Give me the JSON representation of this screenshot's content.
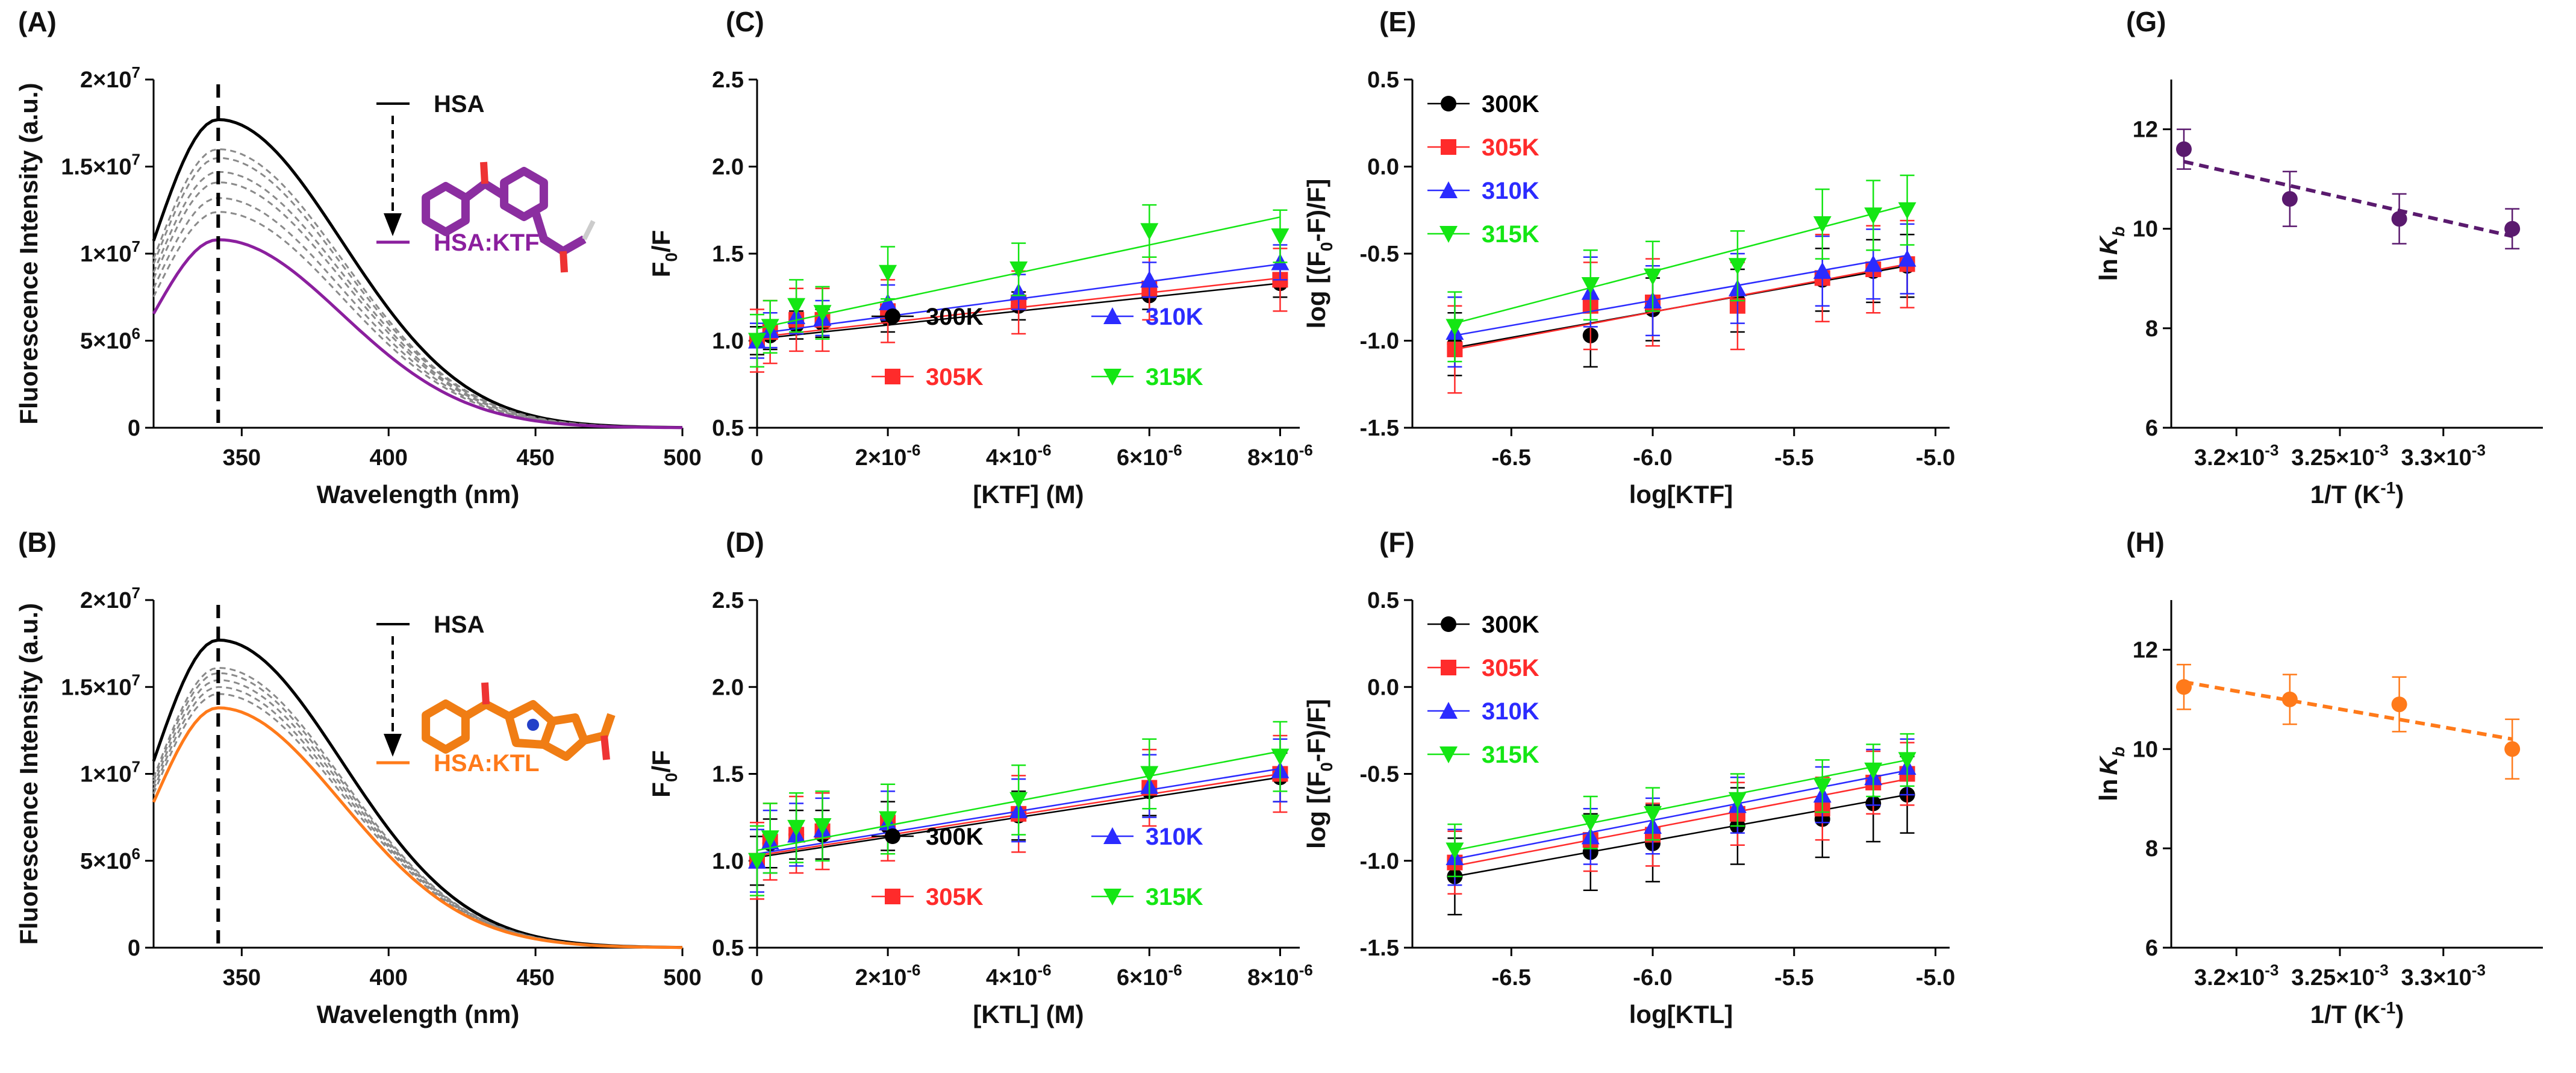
{
  "colors": {
    "black": "#000000",
    "red": "#ff2b2b",
    "blue": "#2b2bff",
    "green": "#14e614",
    "purple": "#6a1b7a",
    "purple_dark": "#4a1060",
    "orange": "#ff7a1a",
    "gray": "#8a8a8a"
  },
  "chart_data": [
    {
      "id": "A",
      "panel_label": "(A)",
      "type": "line",
      "xlabel": "Wavelength (nm)",
      "ylabel": "Fluorescence Intensity (a.u.)",
      "xlim": [
        320,
        500
      ],
      "ylim": [
        0,
        20000000
      ],
      "xticks": [
        350,
        400,
        450,
        500
      ],
      "yticks": [
        {
          "v": 0,
          "m": "0",
          "e": ""
        },
        {
          "v": 5000000,
          "m": "5×10",
          "e": "6"
        },
        {
          "v": 10000000,
          "m": "1×10",
          "e": "7"
        },
        {
          "v": 15000000,
          "m": "1.5×10",
          "e": "7"
        },
        {
          "v": 20000000,
          "m": "2×10",
          "e": "7"
        }
      ],
      "peak_nm": 342,
      "series": [
        {
          "name": "HSA",
          "peak": 17700000,
          "color": "#000000",
          "style": "solid"
        },
        {
          "name": "q1",
          "peak": 16000000,
          "color": "#8a8a8a",
          "style": "dashed"
        },
        {
          "name": "q2",
          "peak": 15500000,
          "color": "#8a8a8a",
          "style": "dashed"
        },
        {
          "name": "q3",
          "peak": 14700000,
          "color": "#8a8a8a",
          "style": "dashed"
        },
        {
          "name": "q4",
          "peak": 14100000,
          "color": "#8a8a8a",
          "style": "dashed"
        },
        {
          "name": "q5",
          "peak": 13200000,
          "color": "#8a8a8a",
          "style": "dashed"
        },
        {
          "name": "q6",
          "peak": 12400000,
          "color": "#8a8a8a",
          "style": "dashed"
        },
        {
          "name": "HSA:KTF",
          "peak": 10800000,
          "color": "#8b1f9e",
          "style": "solid"
        }
      ],
      "legend_top": "HSA",
      "legend_bottom": "HSA:KTF",
      "legend_bottom_color": "#8b1f9e",
      "molecule": "purple"
    },
    {
      "id": "B",
      "panel_label": "(B)",
      "type": "line",
      "xlabel": "Wavelength (nm)",
      "ylabel": "Fluorescence Intensity (a.u.)",
      "xlim": [
        320,
        500
      ],
      "ylim": [
        0,
        20000000
      ],
      "xticks": [
        350,
        400,
        450,
        500
      ],
      "yticks": [
        {
          "v": 0,
          "m": "0",
          "e": ""
        },
        {
          "v": 5000000,
          "m": "5×10",
          "e": "6"
        },
        {
          "v": 10000000,
          "m": "1×10",
          "e": "7"
        },
        {
          "v": 15000000,
          "m": "1.5×10",
          "e": "7"
        },
        {
          "v": 20000000,
          "m": "2×10",
          "e": "7"
        }
      ],
      "peak_nm": 342,
      "series": [
        {
          "name": "HSA",
          "peak": 17700000,
          "color": "#000000",
          "style": "solid"
        },
        {
          "name": "q1",
          "peak": 16100000,
          "color": "#8a8a8a",
          "style": "dashed"
        },
        {
          "name": "q2",
          "peak": 15800000,
          "color": "#8a8a8a",
          "style": "dashed"
        },
        {
          "name": "q3",
          "peak": 15400000,
          "color": "#8a8a8a",
          "style": "dashed"
        },
        {
          "name": "q4",
          "peak": 15000000,
          "color": "#8a8a8a",
          "style": "dashed"
        },
        {
          "name": "q5",
          "peak": 14600000,
          "color": "#8a8a8a",
          "style": "dashed"
        },
        {
          "name": "HSA:KTL",
          "peak": 13800000,
          "color": "#ff7a1a",
          "style": "solid"
        }
      ],
      "legend_top": "HSA",
      "legend_bottom": "HSA:KTL",
      "legend_bottom_color": "#ff7a1a",
      "molecule": "orange"
    },
    {
      "id": "C",
      "panel_label": "(C)",
      "type": "scatter",
      "xlabel": "[KTF] (M)",
      "ylabel_main": "F",
      "ylabel_sub": "0",
      "ylabel_tail": "/F",
      "xlim": [
        0,
        8.3e-06
      ],
      "ylim": [
        0.5,
        2.5
      ],
      "xticks": [
        {
          "v": 0,
          "m": "0",
          "e": ""
        },
        {
          "v": 2e-06,
          "m": "2×10",
          "e": "-6"
        },
        {
          "v": 4e-06,
          "m": "4×10",
          "e": "-6"
        },
        {
          "v": 6e-06,
          "m": "6×10",
          "e": "-6"
        },
        {
          "v": 8e-06,
          "m": "8×10",
          "e": "-6"
        }
      ],
      "yticks": [
        0.5,
        1.0,
        1.5,
        2.0,
        2.5
      ],
      "x": [
        0,
        2e-07,
        6e-07,
        1e-06,
        2e-06,
        4e-06,
        6e-06,
        8e-06
      ],
      "series": [
        {
          "name": "300K",
          "marker": "circle",
          "color": "#000000",
          "fit": [
            1.01,
            1.33
          ],
          "values": [
            1.0,
            1.03,
            1.09,
            1.1,
            1.13,
            1.2,
            1.26,
            1.33
          ],
          "err": 0.08
        },
        {
          "name": "305K",
          "marker": "square",
          "color": "#ff2b2b",
          "fit": [
            1.02,
            1.36
          ],
          "values": [
            1.0,
            1.05,
            1.12,
            1.12,
            1.17,
            1.22,
            1.3,
            1.35
          ],
          "err": 0.18
        },
        {
          "name": "310K",
          "marker": "triangle-up",
          "color": "#2b2bff",
          "fit": [
            1.04,
            1.44
          ],
          "values": [
            1.0,
            1.06,
            1.14,
            1.13,
            1.22,
            1.28,
            1.35,
            1.45
          ],
          "err": 0.1
        },
        {
          "name": "315K",
          "marker": "triangle-down",
          "color": "#14e614",
          "fit": [
            1.07,
            1.71
          ],
          "values": [
            1.0,
            1.08,
            1.2,
            1.16,
            1.39,
            1.41,
            1.63,
            1.6
          ],
          "err": 0.15
        }
      ],
      "legend_layout": "grid2x2-bottom"
    },
    {
      "id": "D",
      "panel_label": "(D)",
      "type": "scatter",
      "xlabel": "[KTL] (M)",
      "ylabel_main": "F",
      "ylabel_sub": "0",
      "ylabel_tail": "/F",
      "xlim": [
        0,
        8.3e-06
      ],
      "ylim": [
        0.5,
        2.5
      ],
      "xticks": [
        {
          "v": 0,
          "m": "0",
          "e": ""
        },
        {
          "v": 2e-06,
          "m": "2×10",
          "e": "-6"
        },
        {
          "v": 4e-06,
          "m": "4×10",
          "e": "-6"
        },
        {
          "v": 6e-06,
          "m": "6×10",
          "e": "-6"
        },
        {
          "v": 8e-06,
          "m": "8×10",
          "e": "-6"
        }
      ],
      "yticks": [
        0.5,
        1.0,
        1.5,
        2.0,
        2.5
      ],
      "x": [
        0,
        2e-07,
        6e-07,
        1e-06,
        2e-06,
        4e-06,
        6e-06,
        8e-06
      ],
      "series": [
        {
          "name": "300K",
          "marker": "circle",
          "color": "#000000",
          "fit": [
            1.02,
            1.48
          ],
          "values": [
            1.0,
            1.1,
            1.15,
            1.15,
            1.2,
            1.26,
            1.4,
            1.48
          ],
          "err": 0.14
        },
        {
          "name": "305K",
          "marker": "square",
          "color": "#ff2b2b",
          "fit": [
            1.03,
            1.5
          ],
          "values": [
            1.0,
            1.11,
            1.15,
            1.17,
            1.22,
            1.27,
            1.42,
            1.5
          ],
          "err": 0.22
        },
        {
          "name": "310K",
          "marker": "triangle-up",
          "color": "#2b2bff",
          "fit": [
            1.04,
            1.53
          ],
          "values": [
            1.0,
            1.11,
            1.15,
            1.18,
            1.22,
            1.29,
            1.43,
            1.52
          ],
          "err": 0.18
        },
        {
          "name": "315K",
          "marker": "triangle-down",
          "color": "#14e614",
          "fit": [
            1.06,
            1.63
          ],
          "values": [
            1.0,
            1.13,
            1.19,
            1.2,
            1.24,
            1.35,
            1.5,
            1.6
          ],
          "err": 0.2
        }
      ],
      "legend_layout": "grid2x2-bottom"
    },
    {
      "id": "E",
      "panel_label": "(E)",
      "type": "scatter",
      "xlabel": "log[KTF]",
      "ylabel_main": "log [(F",
      "ylabel_sub": "0",
      "ylabel_tail": "-F)/F]",
      "xlim": [
        -6.85,
        -4.95
      ],
      "ylim": [
        -1.5,
        0.5
      ],
      "xticks": [
        {
          "v": -6.5,
          "m": "-6.5",
          "e": ""
        },
        {
          "v": -6.0,
          "m": "-6.0",
          "e": ""
        },
        {
          "v": -5.5,
          "m": "-5.5",
          "e": ""
        },
        {
          "v": -5.0,
          "m": "-5.0",
          "e": ""
        }
      ],
      "yticks": [
        -1.5,
        -1.0,
        -0.5,
        0.0,
        0.5
      ],
      "x": [
        -6.7,
        -6.22,
        -6.0,
        -5.7,
        -5.4,
        -5.22,
        -5.1
      ],
      "series": [
        {
          "name": "300K",
          "marker": "circle",
          "color": "#000000",
          "fit": [
            -1.04,
            -0.57
          ],
          "values": [
            -1.02,
            -0.97,
            -0.82,
            -0.77,
            -0.65,
            -0.6,
            -0.57
          ],
          "err": 0.18
        },
        {
          "name": "305K",
          "marker": "square",
          "color": "#ff2b2b",
          "fit": [
            -1.05,
            -0.56
          ],
          "values": [
            -1.05,
            -0.8,
            -0.78,
            -0.8,
            -0.64,
            -0.59,
            -0.56
          ],
          "err": 0.25
        },
        {
          "name": "310K",
          "marker": "triangle-up",
          "color": "#2b2bff",
          "fit": [
            -0.97,
            -0.51
          ],
          "values": [
            -0.95,
            -0.72,
            -0.77,
            -0.7,
            -0.6,
            -0.56,
            -0.53
          ],
          "err": 0.2
        },
        {
          "name": "315K",
          "marker": "triangle-down",
          "color": "#14e614",
          "fit": [
            -0.9,
            -0.22
          ],
          "values": [
            -0.92,
            -0.68,
            -0.63,
            -0.57,
            -0.33,
            -0.28,
            -0.25
          ],
          "err": 0.2
        }
      ],
      "legend_layout": "column-top-left"
    },
    {
      "id": "F",
      "panel_label": "(F)",
      "type": "scatter",
      "xlabel": "log[KTL]",
      "ylabel_main": "log [(F",
      "ylabel_sub": "0",
      "ylabel_tail": "-F)/F]",
      "xlim": [
        -6.85,
        -4.95
      ],
      "ylim": [
        -1.5,
        0.5
      ],
      "xticks": [
        {
          "v": -6.5,
          "m": "-6.5",
          "e": ""
        },
        {
          "v": -6.0,
          "m": "-6.0",
          "e": ""
        },
        {
          "v": -5.5,
          "m": "-5.5",
          "e": ""
        },
        {
          "v": -5.0,
          "m": "-5.0",
          "e": ""
        }
      ],
      "yticks": [
        -1.5,
        -1.0,
        -0.5,
        0.0,
        0.5
      ],
      "x": [
        -6.7,
        -6.22,
        -6.0,
        -5.7,
        -5.4,
        -5.22,
        -5.1
      ],
      "series": [
        {
          "name": "300K",
          "marker": "circle",
          "color": "#000000",
          "fit": [
            -1.09,
            -0.62
          ],
          "values": [
            -1.09,
            -0.95,
            -0.9,
            -0.8,
            -0.76,
            -0.67,
            -0.62
          ],
          "err": 0.22
        },
        {
          "name": "305K",
          "marker": "square",
          "color": "#ff2b2b",
          "fit": [
            -1.03,
            -0.53
          ],
          "values": [
            -1.01,
            -0.88,
            -0.85,
            -0.73,
            -0.7,
            -0.55,
            -0.5
          ],
          "err": 0.18
        },
        {
          "name": "310K",
          "marker": "triangle-up",
          "color": "#2b2bff",
          "fit": [
            -0.99,
            -0.48
          ],
          "values": [
            -0.98,
            -0.86,
            -0.8,
            -0.68,
            -0.62,
            -0.52,
            -0.46
          ],
          "err": 0.16
        },
        {
          "name": "315K",
          "marker": "triangle-down",
          "color": "#14e614",
          "fit": [
            -0.94,
            -0.42
          ],
          "values": [
            -0.94,
            -0.78,
            -0.73,
            -0.65,
            -0.57,
            -0.48,
            -0.42
          ],
          "err": 0.15
        }
      ],
      "legend_layout": "column-top-left"
    },
    {
      "id": "G",
      "panel_label": "(G)",
      "type": "scatter",
      "xlabel_main": "1/T (K",
      "xlabel_sup": "-1",
      "xlabel_tail": ")",
      "ylabel_main": "ln",
      "ylabel_italic": "K",
      "ylabel_sub": "b",
      "xlim": [
        0.0031685,
        0.0033481
      ],
      "ylim": [
        6,
        13
      ],
      "xticks": [
        {
          "v": 0.0032,
          "m": "3.2×10",
          "e": "-3"
        },
        {
          "v": 0.00325,
          "m": "3.25×10",
          "e": "-3"
        },
        {
          "v": 0.0033,
          "m": "3.3×10",
          "e": "-3"
        }
      ],
      "yticks": [
        6,
        8,
        10,
        12
      ],
      "x": [
        0.0031746,
        0.0032258,
        0.0032787,
        0.0033333
      ],
      "series": [
        {
          "name": "lnKb",
          "marker": "circle",
          "color": "#5a1a6e",
          "fit": [
            11.35,
            9.85
          ],
          "values": [
            11.6,
            10.6,
            10.2,
            10.0
          ],
          "err": [
            0.4,
            0.55,
            0.5,
            0.4
          ]
        }
      ]
    },
    {
      "id": "H",
      "panel_label": "(H)",
      "type": "scatter",
      "xlabel_main": "1/T (K",
      "xlabel_sup": "-1",
      "xlabel_tail": ")",
      "ylabel_main": "ln",
      "ylabel_italic": "K",
      "ylabel_sub": "b",
      "xlim": [
        0.0031685,
        0.0033481
      ],
      "ylim": [
        6,
        13
      ],
      "xticks": [
        {
          "v": 0.0032,
          "m": "3.2×10",
          "e": "-3"
        },
        {
          "v": 0.00325,
          "m": "3.25×10",
          "e": "-3"
        },
        {
          "v": 0.0033,
          "m": "3.3×10",
          "e": "-3"
        }
      ],
      "yticks": [
        6,
        8,
        10,
        12
      ],
      "x": [
        0.0031746,
        0.0032258,
        0.0032787,
        0.0033333
      ],
      "series": [
        {
          "name": "lnKb",
          "marker": "circle",
          "color": "#ff7a1a",
          "fit": [
            11.35,
            10.2
          ],
          "values": [
            11.25,
            11.0,
            10.9,
            10.0
          ],
          "err": [
            0.45,
            0.5,
            0.55,
            0.6
          ]
        }
      ]
    }
  ]
}
